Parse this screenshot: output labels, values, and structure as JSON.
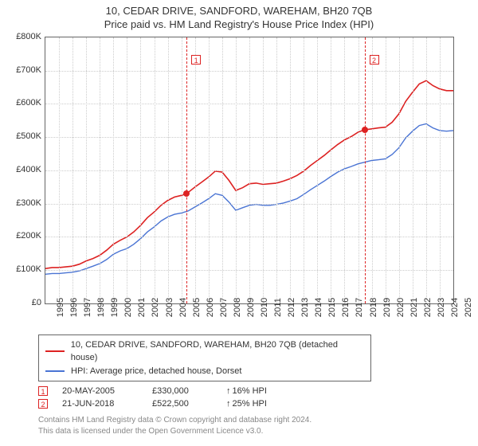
{
  "title": {
    "line1": "10, CEDAR DRIVE, SANDFORD, WAREHAM, BH20 7QB",
    "line2": "Price paid vs. HM Land Registry's House Price Index (HPI)",
    "fontsize": 13
  },
  "chart": {
    "type": "line",
    "background_color": "#ffffff",
    "grid_color": "#cccccc",
    "border_color": "#666666",
    "xlim": [
      1995,
      2025
    ],
    "ylim": [
      0,
      800000
    ],
    "ytick_step": 100000,
    "yticks": [
      "£0",
      "£100K",
      "£200K",
      "£300K",
      "£400K",
      "£500K",
      "£600K",
      "£700K",
      "£800K"
    ],
    "xticks": [
      1995,
      1996,
      1997,
      1998,
      1999,
      2000,
      2001,
      2002,
      2003,
      2004,
      2005,
      2006,
      2007,
      2008,
      2009,
      2010,
      2011,
      2012,
      2013,
      2014,
      2015,
      2016,
      2017,
      2018,
      2019,
      2020,
      2021,
      2022,
      2023,
      2024,
      2025
    ],
    "series": [
      {
        "name": "property",
        "label": "10, CEDAR DRIVE, SANDFORD, WAREHAM, BH20 7QB (detached house)",
        "color": "#dd2222",
        "line_width": 1.6,
        "data": [
          [
            1995,
            105000
          ],
          [
            1995.5,
            108000
          ],
          [
            1996,
            108000
          ],
          [
            1996.5,
            110000
          ],
          [
            1997,
            112000
          ],
          [
            1997.5,
            118000
          ],
          [
            1998,
            128000
          ],
          [
            1998.5,
            135000
          ],
          [
            1999,
            145000
          ],
          [
            1999.5,
            160000
          ],
          [
            2000,
            178000
          ],
          [
            2000.5,
            190000
          ],
          [
            2001,
            200000
          ],
          [
            2001.5,
            215000
          ],
          [
            2002,
            235000
          ],
          [
            2002.5,
            258000
          ],
          [
            2003,
            275000
          ],
          [
            2003.5,
            295000
          ],
          [
            2004,
            310000
          ],
          [
            2004.5,
            320000
          ],
          [
            2005,
            325000
          ],
          [
            2005.38,
            330000
          ],
          [
            2006,
            350000
          ],
          [
            2006.5,
            365000
          ],
          [
            2007,
            380000
          ],
          [
            2007.5,
            398000
          ],
          [
            2008,
            395000
          ],
          [
            2008.5,
            370000
          ],
          [
            2009,
            340000
          ],
          [
            2009.5,
            348000
          ],
          [
            2010,
            360000
          ],
          [
            2010.5,
            362000
          ],
          [
            2011,
            358000
          ],
          [
            2011.5,
            360000
          ],
          [
            2012,
            362000
          ],
          [
            2012.5,
            368000
          ],
          [
            2013,
            375000
          ],
          [
            2013.5,
            385000
          ],
          [
            2014,
            398000
          ],
          [
            2014.5,
            415000
          ],
          [
            2015,
            430000
          ],
          [
            2015.5,
            445000
          ],
          [
            2016,
            462000
          ],
          [
            2016.5,
            478000
          ],
          [
            2017,
            492000
          ],
          [
            2017.5,
            502000
          ],
          [
            2018,
            515000
          ],
          [
            2018.47,
            522500
          ],
          [
            2018.5,
            522500
          ],
          [
            2019,
            525000
          ],
          [
            2019.5,
            528000
          ],
          [
            2020,
            530000
          ],
          [
            2020.5,
            545000
          ],
          [
            2021,
            570000
          ],
          [
            2021.5,
            608000
          ],
          [
            2022,
            635000
          ],
          [
            2022.5,
            660000
          ],
          [
            2023,
            670000
          ],
          [
            2023.5,
            655000
          ],
          [
            2024,
            645000
          ],
          [
            2024.5,
            640000
          ],
          [
            2025,
            640000
          ]
        ]
      },
      {
        "name": "hpi",
        "label": "HPI: Average price, detached house, Dorset",
        "color": "#4a74d4",
        "line_width": 1.4,
        "data": [
          [
            1995,
            88000
          ],
          [
            1995.5,
            90000
          ],
          [
            1996,
            90000
          ],
          [
            1996.5,
            92000
          ],
          [
            1997,
            94000
          ],
          [
            1997.5,
            98000
          ],
          [
            1998,
            105000
          ],
          [
            1998.5,
            112000
          ],
          [
            1999,
            120000
          ],
          [
            1999.5,
            132000
          ],
          [
            2000,
            148000
          ],
          [
            2000.5,
            158000
          ],
          [
            2001,
            165000
          ],
          [
            2001.5,
            178000
          ],
          [
            2002,
            195000
          ],
          [
            2002.5,
            215000
          ],
          [
            2003,
            230000
          ],
          [
            2003.5,
            248000
          ],
          [
            2004,
            260000
          ],
          [
            2004.5,
            268000
          ],
          [
            2005,
            272000
          ],
          [
            2005.5,
            278000
          ],
          [
            2006,
            290000
          ],
          [
            2006.5,
            302000
          ],
          [
            2007,
            315000
          ],
          [
            2007.5,
            330000
          ],
          [
            2008,
            325000
          ],
          [
            2008.5,
            305000
          ],
          [
            2009,
            280000
          ],
          [
            2009.5,
            288000
          ],
          [
            2010,
            295000
          ],
          [
            2010.5,
            298000
          ],
          [
            2011,
            295000
          ],
          [
            2011.5,
            295000
          ],
          [
            2012,
            298000
          ],
          [
            2012.5,
            302000
          ],
          [
            2013,
            308000
          ],
          [
            2013.5,
            315000
          ],
          [
            2014,
            328000
          ],
          [
            2014.5,
            342000
          ],
          [
            2015,
            355000
          ],
          [
            2015.5,
            368000
          ],
          [
            2016,
            382000
          ],
          [
            2016.5,
            395000
          ],
          [
            2017,
            405000
          ],
          [
            2017.5,
            412000
          ],
          [
            2018,
            420000
          ],
          [
            2018.5,
            425000
          ],
          [
            2019,
            430000
          ],
          [
            2019.5,
            432000
          ],
          [
            2020,
            435000
          ],
          [
            2020.5,
            448000
          ],
          [
            2021,
            468000
          ],
          [
            2021.5,
            498000
          ],
          [
            2022,
            518000
          ],
          [
            2022.5,
            535000
          ],
          [
            2023,
            540000
          ],
          [
            2023.5,
            528000
          ],
          [
            2024,
            520000
          ],
          [
            2024.5,
            518000
          ],
          [
            2025,
            520000
          ]
        ]
      }
    ],
    "markers": [
      {
        "id": "1",
        "x": 2005.38,
        "y": 330000
      },
      {
        "id": "2",
        "x": 2018.47,
        "y": 522500
      }
    ]
  },
  "legend": {
    "items": [
      {
        "color": "#dd2222",
        "label": "10, CEDAR DRIVE, SANDFORD, WAREHAM, BH20 7QB (detached house)"
      },
      {
        "color": "#4a74d4",
        "label": "HPI: Average price, detached house, Dorset"
      }
    ]
  },
  "sales": [
    {
      "id": "1",
      "date": "20-MAY-2005",
      "price": "£330,000",
      "delta": "16%",
      "note": "HPI"
    },
    {
      "id": "2",
      "date": "21-JUN-2018",
      "price": "£522,500",
      "delta": "25%",
      "note": "HPI"
    }
  ],
  "footer": {
    "line1": "Contains HM Land Registry data © Crown copyright and database right 2024.",
    "line2": "This data is licensed under the Open Government Licence v3.0."
  }
}
